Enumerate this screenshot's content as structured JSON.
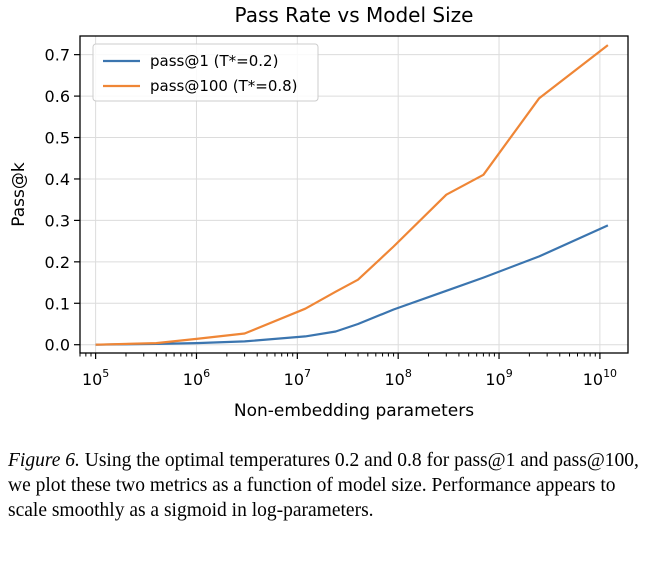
{
  "chart_data": {
    "type": "line",
    "title": "Pass Rate vs Model Size",
    "xlabel": "Non-embedding parameters",
    "ylabel": "Pass@k",
    "xscale": "log",
    "xlim": [
      70000,
      19000000000
    ],
    "ylim": [
      -0.02,
      0.745
    ],
    "x_ticks": [
      100000,
      1000000,
      10000000,
      100000000,
      1000000000,
      10000000000
    ],
    "x_tick_labels": [
      {
        "base": "10",
        "exp": "5"
      },
      {
        "base": "10",
        "exp": "6"
      },
      {
        "base": "10",
        "exp": "7"
      },
      {
        "base": "10",
        "exp": "8"
      },
      {
        "base": "10",
        "exp": "9"
      },
      {
        "base": "10",
        "exp": "10"
      }
    ],
    "y_ticks": [
      0.0,
      0.1,
      0.2,
      0.3,
      0.4,
      0.5,
      0.6,
      0.7
    ],
    "y_tick_labels": [
      "0.0",
      "0.1",
      "0.2",
      "0.3",
      "0.4",
      "0.5",
      "0.6",
      "0.7"
    ],
    "grid": true,
    "legend_position": "top-left",
    "series": [
      {
        "name": "pass@1 (T*=0.2)",
        "color": "#3b75af",
        "x": [
          100000,
          400000,
          1000000,
          3000000,
          12000000,
          24000000,
          40000000,
          90000000,
          300000000,
          700000000,
          2500000000,
          12000000000
        ],
        "y": [
          0.0,
          0.002,
          0.004,
          0.008,
          0.02,
          0.032,
          0.05,
          0.085,
          0.13,
          0.162,
          0.213,
          0.288
        ]
      },
      {
        "name": "pass@100 (T*=0.8)",
        "color": "#ef8636",
        "x": [
          100000,
          400000,
          1000000,
          3000000,
          12000000,
          24000000,
          40000000,
          90000000,
          300000000,
          700000000,
          2500000000,
          12000000000
        ],
        "y": [
          0.0,
          0.004,
          0.014,
          0.027,
          0.087,
          0.128,
          0.157,
          0.237,
          0.362,
          0.41,
          0.595,
          0.723
        ]
      }
    ]
  },
  "caption": {
    "figure_label": "Figure 6.",
    "text": " Using the optimal temperatures 0.2 and 0.8 for pass@1 and pass@100, we plot these two metrics as a function of model size. Performance appears to scale smoothly as a sigmoid in log-parameters."
  }
}
